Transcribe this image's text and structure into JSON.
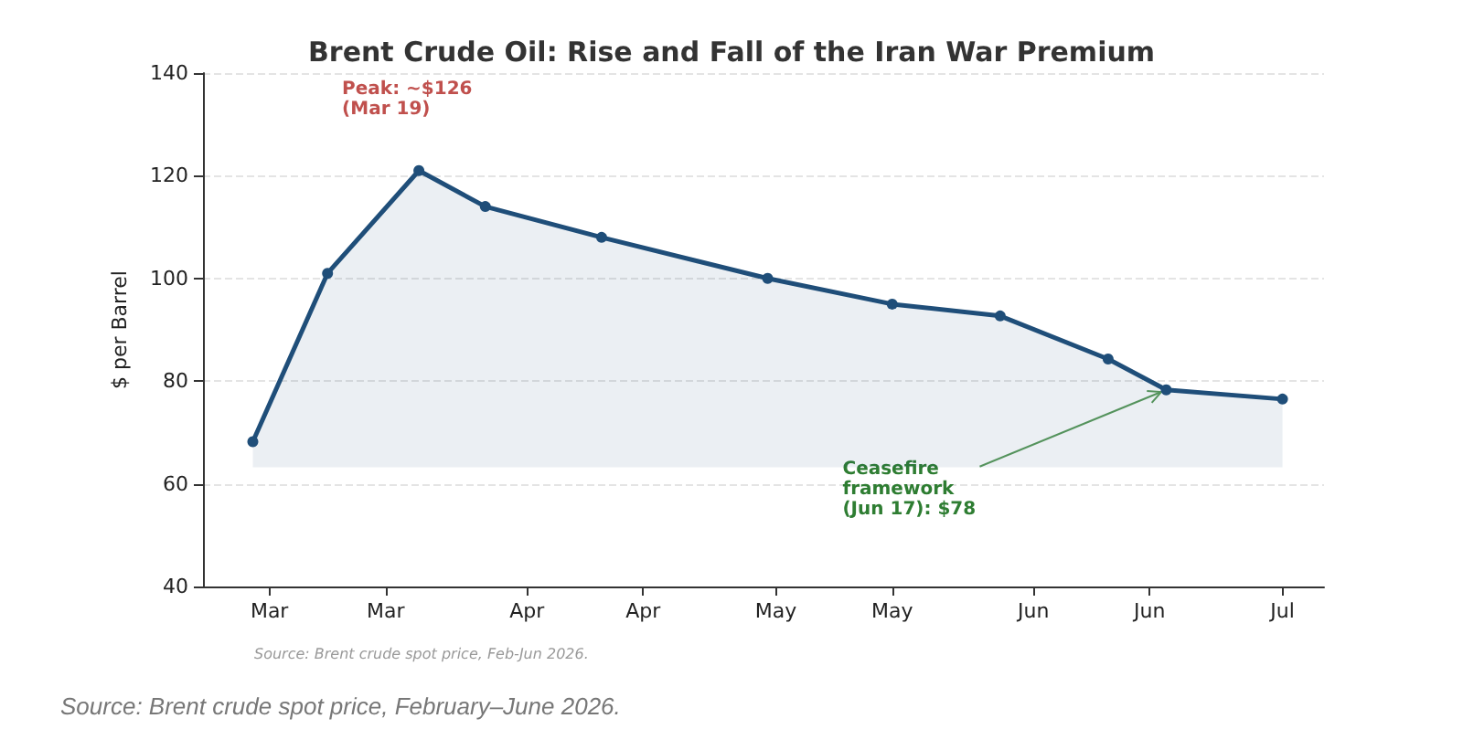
{
  "chart_data": {
    "type": "area",
    "title": "Brent Crude Oil: Rise and Fall of the Iran War Premium",
    "ylabel": "$ per Barrel",
    "x": [
      "2026-02-27",
      "2026-03-08",
      "2026-03-19",
      "2026-03-27",
      "2026-04-10",
      "2026-04-30",
      "2026-05-15",
      "2026-05-28",
      "2026-06-10",
      "2026-06-17",
      "2026-07-01"
    ],
    "series": [
      {
        "color": "#1f4e79",
        "values": [
          68.2,
          101,
          121,
          114,
          108,
          100,
          95,
          92.7,
          84.3,
          78.3,
          76.5
        ]
      }
    ],
    "xlim": [
      "2026-02-21",
      "2026-07-06"
    ],
    "xticks": [
      {
        "value": "2026-03-01",
        "label": "Mar"
      },
      {
        "value": "2026-03-15",
        "label": "Mar"
      },
      {
        "value": "2026-04-01",
        "label": "Apr"
      },
      {
        "value": "2026-04-15",
        "label": "Apr"
      },
      {
        "value": "2026-05-01",
        "label": "May"
      },
      {
        "value": "2026-05-15",
        "label": "May"
      },
      {
        "value": "2026-06-01",
        "label": "Jun"
      },
      {
        "value": "2026-06-15",
        "label": "Jun"
      },
      {
        "value": "2026-07-01",
        "label": "Jul"
      }
    ],
    "ylim": [
      40,
      140
    ],
    "yticks": [
      40,
      60,
      80,
      100,
      120,
      140
    ],
    "grid": "y",
    "marker": "circle",
    "line_style": "solid",
    "annotations": [
      {
        "text": "Peak: ~$126\n(Mar 19)",
        "x": "2026-03-19",
        "y": 121
      },
      {
        "text": "Ceasefire\nframework\n(Jun 17): $78",
        "x": "2026-06-17",
        "y": 78.3
      },
      "Source: Brent crude spot price, Feb-Jun 2026.",
      "Source: Brent crude spot price, February–June 2026."
    ]
  }
}
